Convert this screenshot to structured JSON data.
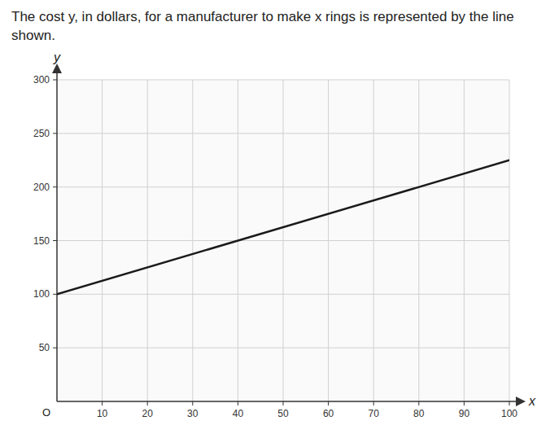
{
  "chart_data": {
    "type": "line",
    "title": "The cost y, in dollars, for a manufacturer to make x rings is represented by the line shown.",
    "x_label": "x",
    "y_label": "y",
    "annotations": [
      "O"
    ],
    "x": [
      0,
      100
    ],
    "values": [
      100,
      225
    ],
    "color": "#1a1a1a",
    "xlim": [
      0,
      100
    ],
    "ylim": [
      0,
      300
    ],
    "xticks": [
      10,
      20,
      30,
      40,
      50,
      60,
      70,
      80,
      90,
      100
    ],
    "yticks": [
      50,
      100,
      150,
      200,
      250,
      300
    ],
    "grid": true
  }
}
